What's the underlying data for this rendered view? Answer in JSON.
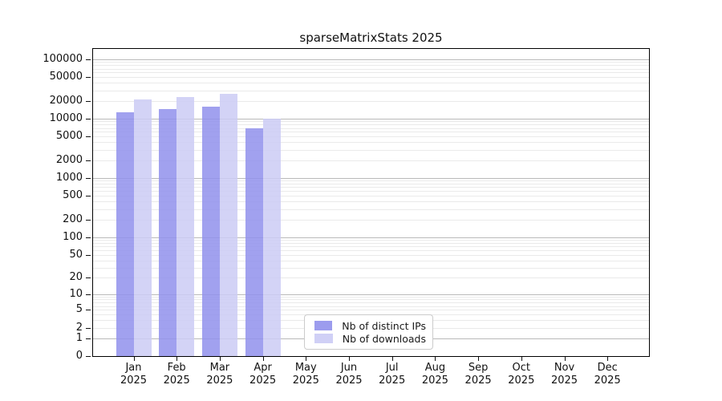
{
  "title": "sparseMatrixStats 2025",
  "chart_data": {
    "type": "bar",
    "title": "sparseMatrixStats 2025",
    "x_year": "2025",
    "categories": [
      "Jan",
      "Feb",
      "Mar",
      "Apr",
      "May",
      "Jun",
      "Jul",
      "Aug",
      "Sep",
      "Oct",
      "Nov",
      "Dec"
    ],
    "series": [
      {
        "name": "Nb of distinct IPs",
        "color": "#9191ec",
        "values": [
          12600,
          14300,
          15700,
          6700,
          null,
          null,
          null,
          null,
          null,
          null,
          null,
          null
        ]
      },
      {
        "name": "Nb of downloads",
        "color": "#cbcbf5",
        "values": [
          20500,
          22500,
          25800,
          10000,
          null,
          null,
          null,
          null,
          null,
          null,
          null,
          null
        ]
      }
    ],
    "y_scale": "log10(value+1)",
    "y_ticks": [
      0,
      1,
      2,
      5,
      10,
      20,
      50,
      100,
      200,
      500,
      1000,
      2000,
      5000,
      10000,
      20000,
      50000,
      100000
    ],
    "ylim": [
      0,
      155000
    ],
    "grid": true,
    "grid_major_color": "#b9b9b9",
    "grid_minor_color": "#eaeaea",
    "legend_position": "lower center",
    "xlabel": "",
    "ylabel": ""
  }
}
